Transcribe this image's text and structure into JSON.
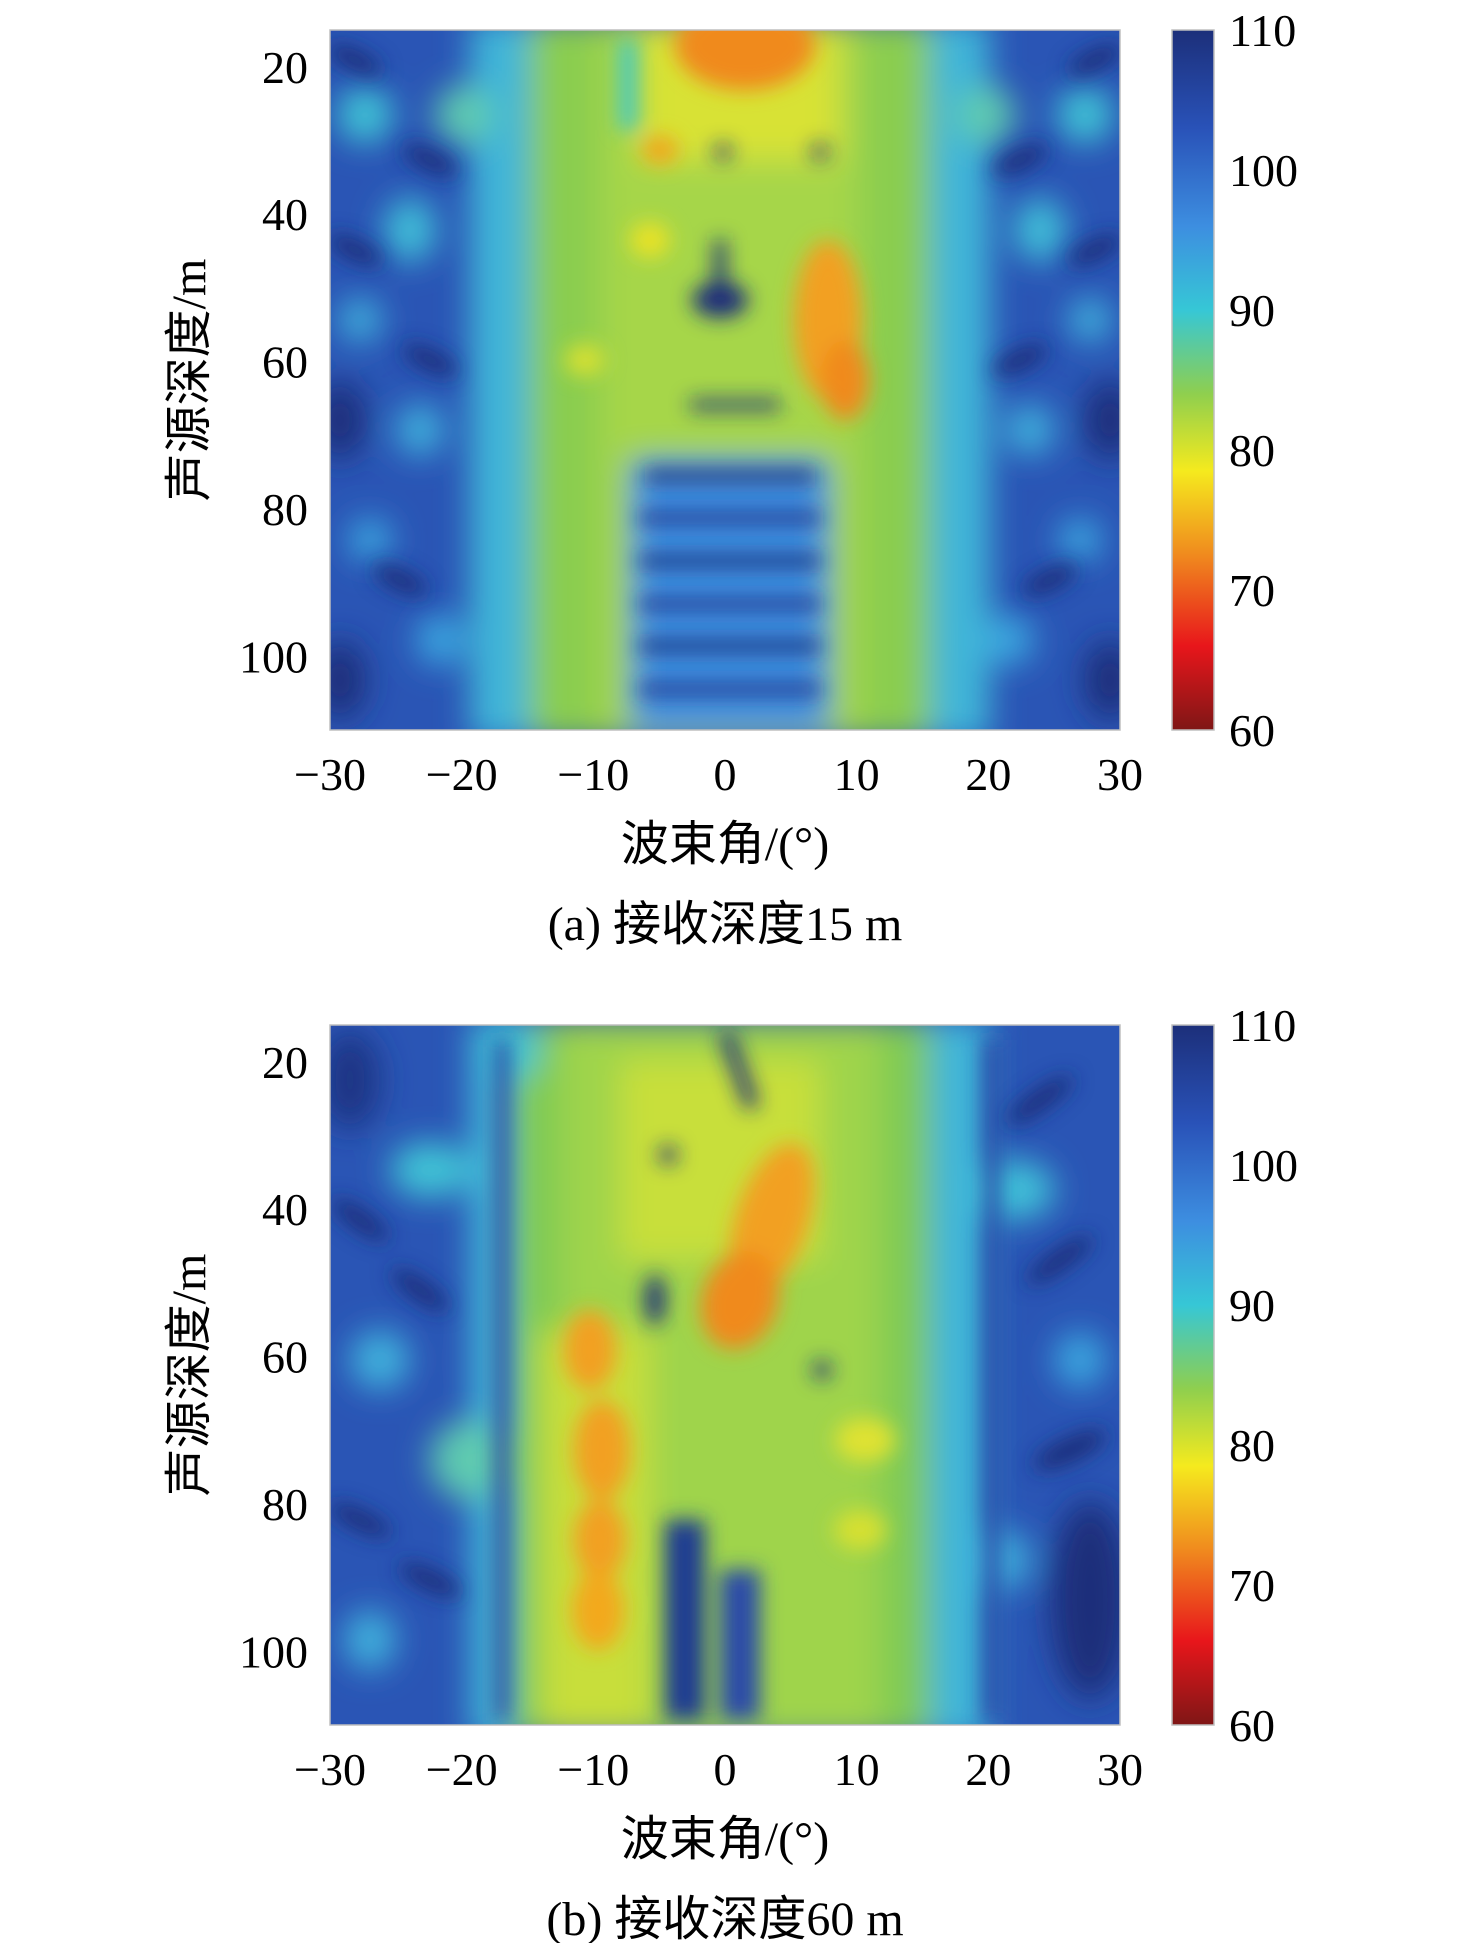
{
  "chart_data": [
    {
      "type": "heatmap",
      "panel": "a",
      "caption": "(a) 接收深度15 m",
      "xlabel": "波束角/(°)",
      "ylabel": "声源深度/m",
      "xlim": [
        -30,
        30
      ],
      "ylim": [
        15,
        110
      ],
      "y_inverted": true,
      "xticks": [
        -30,
        -20,
        -10,
        0,
        10,
        20,
        30
      ],
      "xtick_labels": [
        "−30",
        "−20",
        "−10",
        "0",
        "10",
        "20",
        "30"
      ],
      "yticks": [
        20,
        40,
        60,
        80,
        100
      ],
      "ytick_labels": [
        "20",
        "40",
        "60",
        "80",
        "100"
      ],
      "colorbar": {
        "range": [
          60,
          110
        ],
        "ticks": [
          60,
          70,
          80,
          90,
          100,
          110
        ],
        "reversed_jet": true
      },
      "grid": false,
      "blobs": [
        {
          "x": 2,
          "y": 19,
          "v": 72,
          "sx": 4,
          "sy": 5
        },
        {
          "x": -1,
          "y": 24,
          "v": 78,
          "sx": 5,
          "sy": 4
        },
        {
          "x": 8,
          "y": 50,
          "v": 73,
          "sx": 2.8,
          "sy": 6
        },
        {
          "x": 10,
          "y": 60,
          "v": 75,
          "sx": 2.6,
          "sy": 5
        },
        {
          "x": -5,
          "y": 30,
          "v": 79,
          "sx": 2,
          "sy": 2.5
        },
        {
          "x": -10,
          "y": 22,
          "v": 86,
          "sx": 3,
          "sy": 4
        }
      ]
    },
    {
      "type": "heatmap",
      "panel": "b",
      "caption": "(b) 接收深度60 m",
      "xlabel": "波束角/(°)",
      "ylabel": "声源深度/m",
      "xlim": [
        -30,
        30
      ],
      "ylim": [
        15,
        110
      ],
      "y_inverted": true,
      "xticks": [
        -30,
        -20,
        -10,
        0,
        10,
        20,
        30
      ],
      "xtick_labels": [
        "−30",
        "−20",
        "−10",
        "0",
        "10",
        "20",
        "30"
      ],
      "yticks": [
        20,
        40,
        60,
        80,
        100
      ],
      "ytick_labels": [
        "20",
        "40",
        "60",
        "80",
        "100"
      ],
      "colorbar": {
        "range": [
          60,
          110
        ],
        "ticks": [
          60,
          70,
          80,
          90,
          100,
          110
        ],
        "reversed_jet": true
      },
      "grid": false,
      "blobs": [
        {
          "x": 3,
          "y": 45,
          "v": 73,
          "sx": 3,
          "sy": 6
        },
        {
          "x": 1,
          "y": 55,
          "v": 72,
          "sx": 3,
          "sy": 5
        },
        {
          "x": -10,
          "y": 60,
          "v": 76,
          "sx": 2.5,
          "sy": 4
        },
        {
          "x": -9,
          "y": 73,
          "v": 74,
          "sx": 2.5,
          "sy": 5
        },
        {
          "x": -10,
          "y": 86,
          "v": 74,
          "sx": 2.5,
          "sy": 4
        },
        {
          "x": -10,
          "y": 96,
          "v": 74,
          "sx": 2.5,
          "sy": 4
        },
        {
          "x": 8,
          "y": 65,
          "v": 82,
          "sx": 3,
          "sy": 6
        },
        {
          "x": -5,
          "y": 28,
          "v": 82,
          "sx": 3,
          "sy": 4
        }
      ]
    }
  ],
  "colors": {
    "jet_reversed": [
      "#7f1616",
      "#e8161b",
      "#f08a1e",
      "#f5ea1e",
      "#8fcf4e",
      "#36c7d6",
      "#3d8ee0",
      "#2952b8",
      "#1c2f7a"
    ]
  }
}
